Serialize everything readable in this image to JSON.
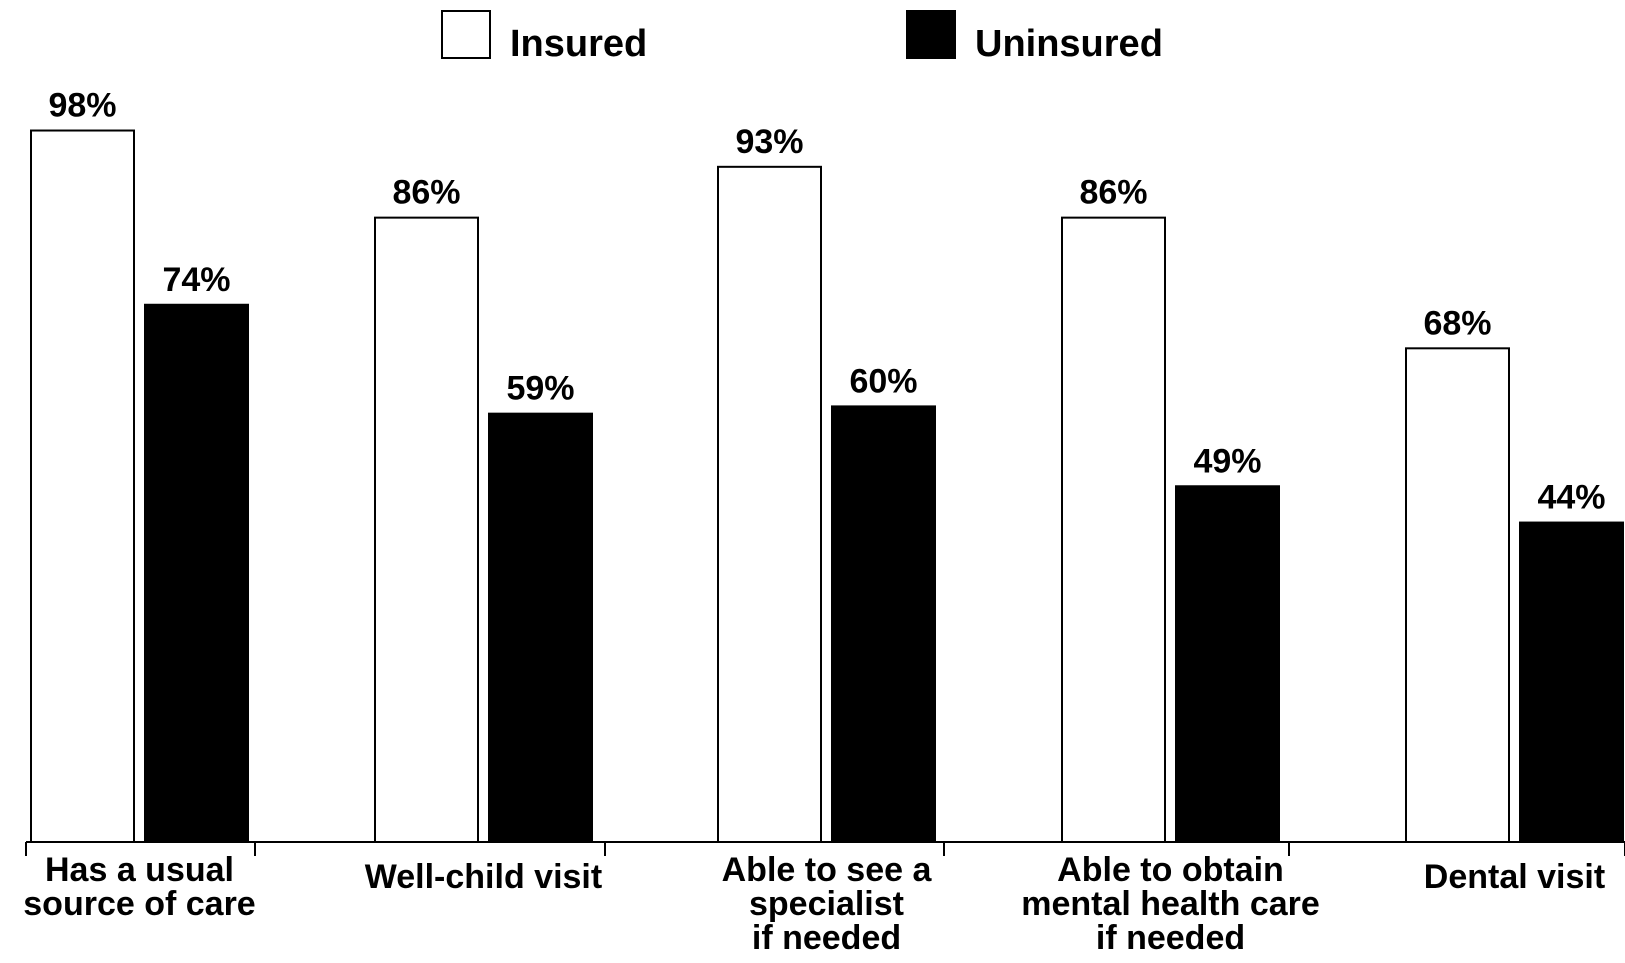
{
  "chart_data": {
    "type": "bar",
    "categories": [
      [
        "Has a usual",
        "source of care"
      ],
      [
        "Well-child visit"
      ],
      [
        "Able to see a",
        "specialist",
        "if needed"
      ],
      [
        "Able to obtain",
        "mental health care",
        "if needed"
      ],
      [
        "Dental visit"
      ]
    ],
    "series": [
      {
        "name": "Insured",
        "values": [
          98,
          86,
          93,
          86,
          68
        ],
        "labels": [
          "98%",
          "86%",
          "93%",
          "86%",
          "68%"
        ],
        "fill": "#ffffff",
        "stroke": "#000000"
      },
      {
        "name": "Uninsured",
        "values": [
          74,
          59,
          60,
          49,
          44
        ],
        "labels": [
          "74%",
          "59%",
          "60%",
          "49%",
          "44%"
        ],
        "fill": "#000000",
        "stroke": "#000000"
      }
    ],
    "ylim": [
      0,
      100
    ],
    "grid": false,
    "legend": "top-center"
  }
}
